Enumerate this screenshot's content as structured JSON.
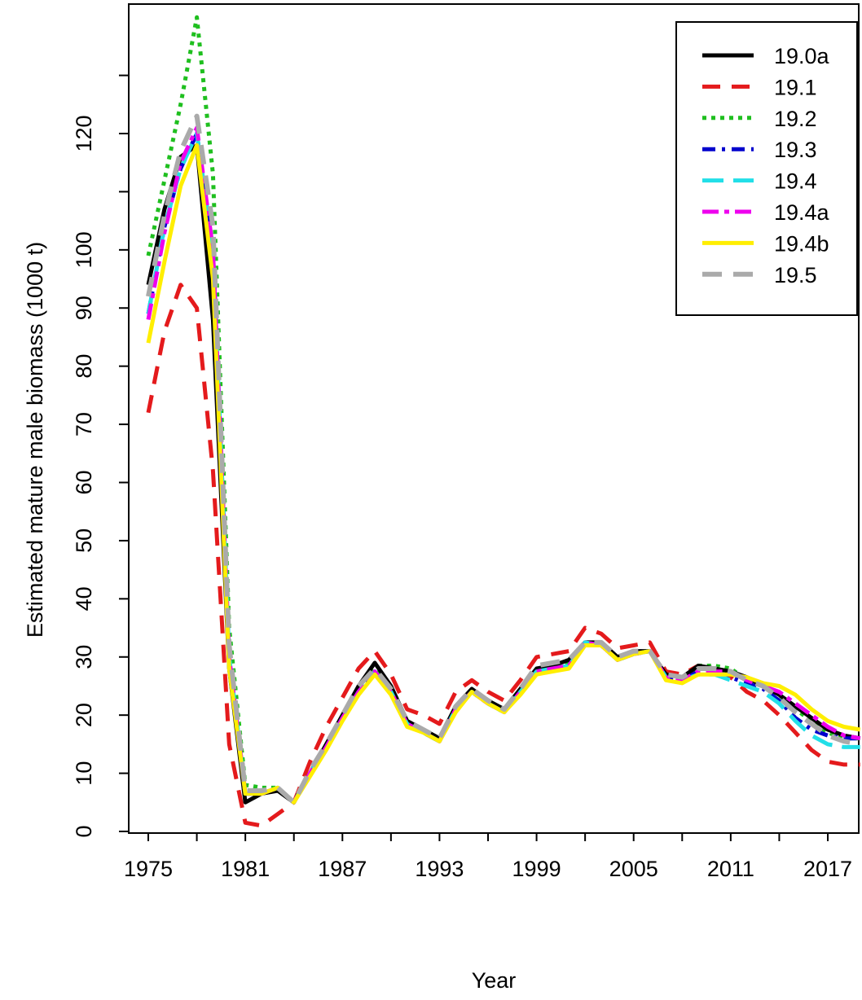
{
  "chart_data": {
    "type": "line",
    "title": "",
    "xlabel": "Year",
    "ylabel": "Estimated mature male biomass (1000 t)",
    "xlim": [
      1974,
      2019.2
    ],
    "ylim": [
      -2,
      130
    ],
    "grid": false,
    "legend_position": "top-right",
    "x_ticks": [
      1975,
      1981,
      1987,
      1993,
      1999,
      2005,
      2011,
      2017
    ],
    "x_minor_ticks": [
      1975,
      1978,
      1981,
      1984,
      1987,
      1990,
      1993,
      1996,
      1999,
      2002,
      2005,
      2008,
      2011,
      2014,
      2017
    ],
    "x_tick_labels": [
      "1975",
      "1981",
      "1987",
      "1993",
      "1999",
      "2005",
      "2011",
      "2017"
    ],
    "y_ticks": [
      0,
      10,
      20,
      30,
      40,
      50,
      60,
      70,
      80,
      90,
      100,
      120
    ],
    "y_minor_ticks": [
      110,
      130
    ],
    "y_tick_labels": [
      "0",
      "10",
      "20",
      "30",
      "40",
      "50",
      "60",
      "70",
      "80",
      "90",
      "100",
      "120"
    ],
    "x": [
      1975,
      1976,
      1977,
      1978,
      1979,
      1980,
      1981,
      1982,
      1983,
      1984,
      1985,
      1986,
      1987,
      1988,
      1989,
      1990,
      1991,
      1992,
      1993,
      1994,
      1995,
      1996,
      1997,
      1998,
      1999,
      2000,
      2001,
      2002,
      2003,
      2004,
      2005,
      2006,
      2007,
      2008,
      2009,
      2010,
      2011,
      2012,
      2013,
      2014,
      2015,
      2016,
      2017,
      2018,
      2019
    ],
    "series": [
      {
        "name": "19.0a",
        "color": "#000000",
        "dash": "",
        "width": 5,
        "values": [
          94,
          107,
          116,
          118,
          88,
          28,
          5,
          6.5,
          7,
          5,
          10,
          15,
          20,
          25,
          29,
          25,
          19,
          17.5,
          16,
          21.5,
          24.5,
          22.5,
          21,
          24.5,
          28,
          28.5,
          29.5,
          32.5,
          32.5,
          30,
          31,
          31,
          27,
          26.5,
          28.5,
          28,
          27.5,
          26.5,
          25,
          23.5,
          21.5,
          19.5,
          17.5,
          16.5,
          16
        ]
      },
      {
        "name": "19.1",
        "color": "#e41a1c",
        "dash": "22,14",
        "width": 5,
        "values": [
          72,
          86,
          94,
          90,
          62,
          15,
          1.5,
          1,
          3,
          5,
          12,
          18,
          23,
          28,
          31,
          27,
          21,
          20,
          18.5,
          24,
          26,
          24,
          22.5,
          26,
          30,
          30.5,
          31,
          35,
          34,
          31.5,
          32,
          32.5,
          27.5,
          27,
          28.5,
          27.5,
          26.5,
          24,
          22.5,
          20,
          17,
          14,
          12,
          11.5,
          11.5
        ]
      },
      {
        "name": "19.2",
        "color": "#1fbf1f",
        "dash": "5,6",
        "width": 5,
        "values": [
          99,
          112,
          125,
          140,
          113,
          35,
          8,
          7.5,
          7.5,
          5,
          10,
          14.5,
          19.5,
          24.5,
          28,
          24.5,
          18.5,
          17,
          15.5,
          21,
          24,
          22,
          20.5,
          24,
          27.5,
          28,
          29,
          32.5,
          32,
          29.5,
          30.5,
          31,
          26.5,
          26,
          28.5,
          28.5,
          28,
          26,
          25,
          23.5,
          21,
          19,
          17,
          16,
          16
        ]
      },
      {
        "name": "19.3",
        "color": "#0000cd",
        "dash": "16,8,4,8",
        "width": 5,
        "values": [
          89,
          104,
          114,
          120,
          100,
          30,
          6.5,
          6.5,
          7.5,
          5,
          10,
          14.5,
          19.5,
          24,
          27.5,
          24,
          18.5,
          17,
          15.5,
          21,
          24,
          22,
          20.5,
          24,
          27.5,
          28,
          28.5,
          32.5,
          32,
          29.5,
          30.5,
          31,
          26.5,
          26,
          27.5,
          27.5,
          26.5,
          25.5,
          24.5,
          22.5,
          19.5,
          17.5,
          16.5,
          16,
          16
        ]
      },
      {
        "name": "19.4",
        "color": "#22dfe8",
        "dash": "26,12",
        "width": 5,
        "values": [
          89,
          104,
          114,
          120,
          100,
          30,
          6.5,
          6.5,
          7.5,
          5,
          10,
          14.5,
          19.5,
          24,
          27.5,
          24,
          18.5,
          17,
          15.5,
          21,
          24,
          22,
          20.5,
          24,
          27.5,
          28,
          28.5,
          32.5,
          32,
          29.5,
          30.5,
          31,
          26.5,
          26,
          27,
          27,
          26,
          25,
          24,
          22,
          19,
          16.5,
          15,
          14.5,
          14.5
        ]
      },
      {
        "name": "19.4a",
        "color": "#ee00ee",
        "dash": "20,7,6,7",
        "width": 5,
        "values": [
          88,
          103,
          115,
          121,
          100,
          30,
          6.5,
          6.5,
          7.5,
          5,
          10,
          14.5,
          19.5,
          24,
          27.5,
          24,
          18.5,
          17,
          15.5,
          21,
          24,
          22,
          20.5,
          24,
          27.5,
          28,
          28.5,
          32.5,
          32,
          29.5,
          30.5,
          31,
          26.5,
          26,
          27.5,
          27.5,
          27.5,
          26,
          25,
          24,
          22,
          20,
          18,
          16.5,
          16
        ]
      },
      {
        "name": "19.4b",
        "color": "#ffee00",
        "dash": "",
        "width": 5,
        "values": [
          84,
          98,
          111,
          118,
          95,
          28,
          6.5,
          6.5,
          7.5,
          5,
          9.5,
          14,
          19,
          23.5,
          27,
          23.5,
          18,
          17,
          15.5,
          20.5,
          24,
          22,
          20.5,
          23.5,
          27,
          27.5,
          28,
          32,
          32,
          29.5,
          30.5,
          31,
          26,
          25.5,
          27,
          27,
          27,
          26.5,
          25.5,
          25,
          23.5,
          21,
          19,
          18,
          17.5
        ]
      },
      {
        "name": "19.5",
        "color": "#aaaaaa",
        "dash": "24,14",
        "width": 6,
        "values": [
          92,
          106,
          117,
          123,
          104,
          32,
          7,
          7,
          7.5,
          5,
          10.5,
          15,
          20,
          25,
          28,
          24.5,
          19,
          17.5,
          16,
          21.5,
          24.5,
          22.5,
          21,
          24.5,
          28.5,
          29,
          29.5,
          32.5,
          32.5,
          30,
          31,
          31,
          27,
          26.5,
          28,
          28,
          27.5,
          26,
          25,
          23,
          20.5,
          18.5,
          16.5,
          15.5,
          15
        ]
      }
    ]
  }
}
